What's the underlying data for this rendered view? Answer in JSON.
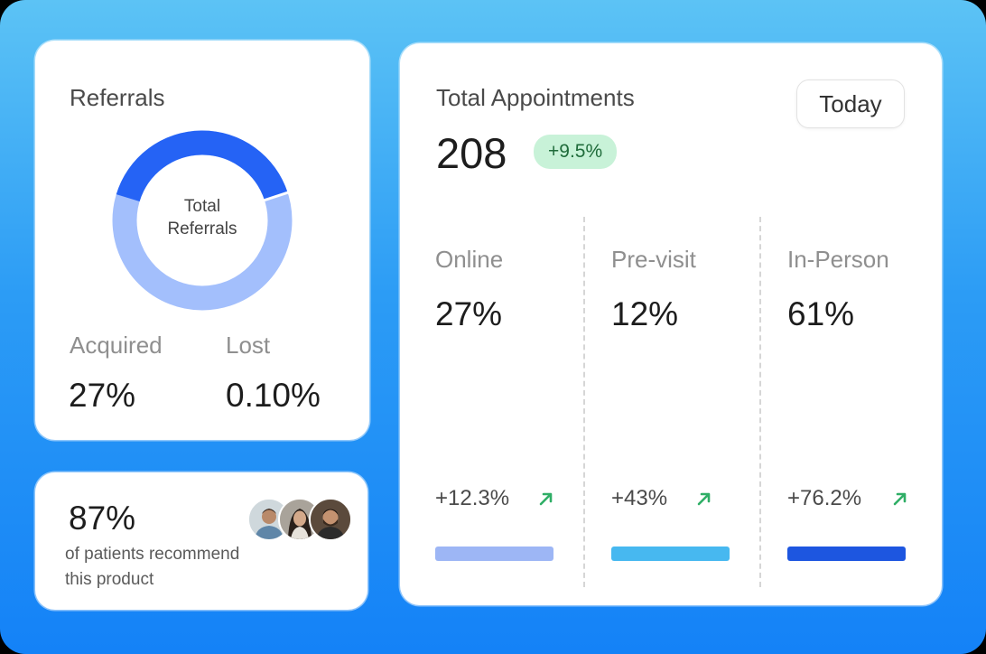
{
  "colors": {
    "donut_primary": "#2563f5",
    "donut_secondary": "#a3bffc",
    "online_bar": "#9db6f5",
    "previsit_bar": "#47b8f0",
    "inperson_bar": "#1d56e0",
    "positive": "#2fae66",
    "badge_bg": "#c8f2d8"
  },
  "referrals": {
    "title": "Referrals",
    "center_line1": "Total",
    "center_line2": "Referrals",
    "acquired_label": "Acquired",
    "acquired_value": "27%",
    "lost_label": "Lost",
    "lost_value": "0.10%",
    "donut_primary_fraction": 0.4
  },
  "recommend": {
    "value": "87%",
    "text_line1": "of patients recommend",
    "text_line2": "this product",
    "avatars": [
      "avatar-man-arms-crossed",
      "avatar-woman",
      "avatar-man-beard"
    ]
  },
  "appointments": {
    "title": "Total Appointments",
    "total": "208",
    "change_badge": "+9.5%",
    "period_button": "Today",
    "columns": [
      {
        "label": "Online",
        "value": "27%",
        "change": "+12.3%",
        "icon": "arrow-up-right-icon"
      },
      {
        "label": "Pre-visit",
        "value": "12%",
        "change": "+43%",
        "icon": "arrow-up-right-icon"
      },
      {
        "label": "In-Person",
        "value": "61%",
        "change": "+76.2%",
        "icon": "arrow-up-right-icon"
      }
    ]
  }
}
